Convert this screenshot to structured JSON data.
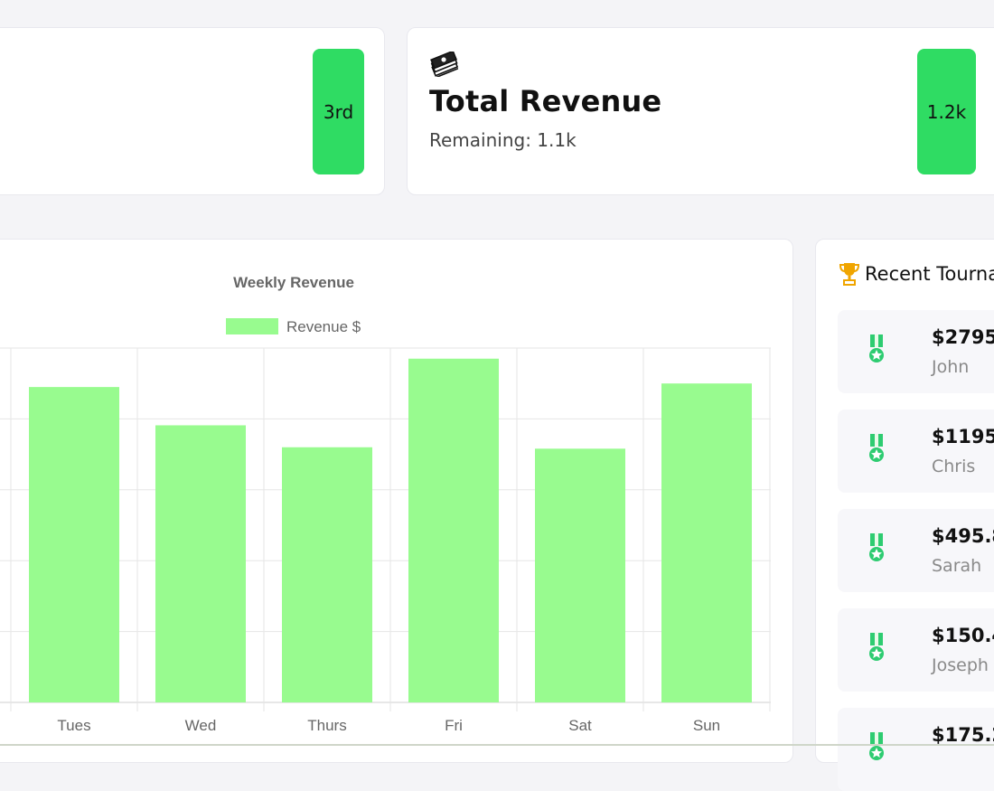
{
  "rank_card": {
    "badge": "3rd"
  },
  "revenue_card": {
    "icon": "money-stack-icon",
    "title": "Total Revenue",
    "subtitle": "Remaining: 1.1k",
    "badge": "1.2k"
  },
  "colors": {
    "badge_green": "#2fdc63",
    "bar_fill": "#98fb8f",
    "medal_green": "#2ecc71",
    "trophy_gold": "#f0a500"
  },
  "chart_data": {
    "type": "bar",
    "title": "Weekly Revenue",
    "categories": [
      "Tues",
      "Wed",
      "Thurs",
      "Fri",
      "Sat",
      "Sun"
    ],
    "series": [
      {
        "name": "Revenue $",
        "values": [
          445,
          391,
          360,
          485,
          358,
          450
        ]
      }
    ],
    "ylim": [
      0,
      500
    ],
    "grid": true,
    "legend": "top-center"
  },
  "tournaments": {
    "header": "Recent Tourna",
    "header_icon": "trophy-icon",
    "item_icon": "medal-icon",
    "items": [
      {
        "amount": "$2795.",
        "name": "John"
      },
      {
        "amount": "$1195.",
        "name": "Chris"
      },
      {
        "amount": "$495.8",
        "name": "Sarah"
      },
      {
        "amount": "$150.4",
        "name": "Joseph"
      },
      {
        "amount": "$175.2",
        "name": ""
      }
    ]
  }
}
